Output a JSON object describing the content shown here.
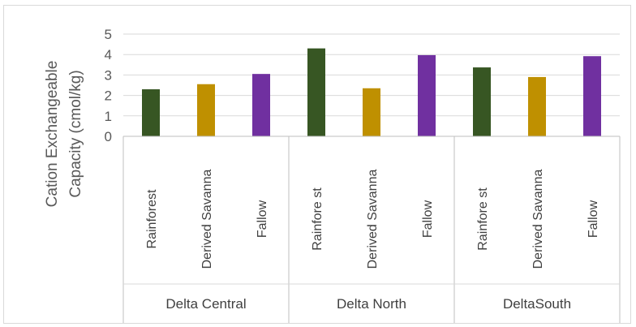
{
  "chart_data": {
    "type": "bar",
    "ylabel_lines": [
      "Cation Exchangeable",
      "Capacity (cmol/kg)"
    ],
    "ylim": [
      0,
      5
    ],
    "yticks": [
      0,
      1,
      2,
      3,
      4,
      5
    ],
    "grid": true,
    "groups": [
      {
        "label": "Delta Central",
        "bars": [
          {
            "category": "Rainforest",
            "value": 2.3,
            "color": "#375623"
          },
          {
            "category": "Derived Savanna",
            "value": 2.55,
            "color": "#BF9000"
          },
          {
            "category": "Fallow",
            "value": 3.05,
            "color": "#7030A0"
          }
        ]
      },
      {
        "label": "Delta North",
        "bars": [
          {
            "category": "Rainfore st",
            "value": 4.3,
            "color": "#375623"
          },
          {
            "category": "Derived Savanna",
            "value": 2.35,
            "color": "#BF9000"
          },
          {
            "category": "Fallow",
            "value": 3.97,
            "color": "#7030A0"
          }
        ]
      },
      {
        "label": "DeltaSouth",
        "bars": [
          {
            "category": "Rainfore st",
            "value": 3.37,
            "color": "#375623"
          },
          {
            "category": "Derived Savanna",
            "value": 2.9,
            "color": "#BF9000"
          },
          {
            "category": "Fallow",
            "value": 3.92,
            "color": "#7030A0"
          }
        ]
      }
    ]
  }
}
